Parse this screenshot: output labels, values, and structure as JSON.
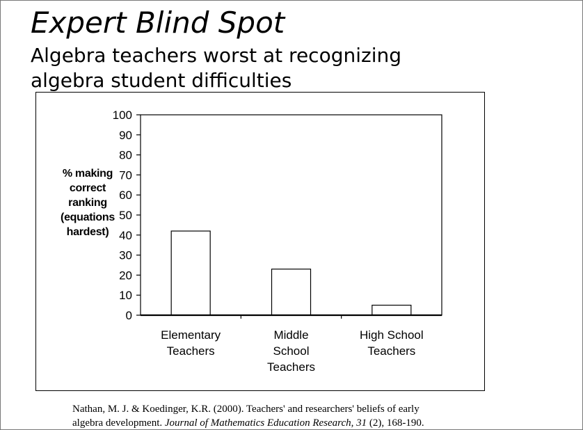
{
  "slide": {
    "title": "Expert Blind Spot",
    "subtitle_lines": [
      "Algebra teachers worst at recognizing",
      "algebra student difficulties"
    ]
  },
  "citation": {
    "line1": "Nathan, M. J. & Koedinger, K.R.  (2000). Teachers' and researchers' beliefs of early",
    "line2_prefix": "algebra development. ",
    "journal": "Journal of Mathematics Education Research",
    "sep": ", ",
    "volume": "31",
    "line2_suffix": " (2), 168-190."
  },
  "chart_data": {
    "type": "bar",
    "title": "",
    "ylabel_lines": [
      "% making",
      "correct",
      "ranking",
      "(equations",
      "hardest)"
    ],
    "categories": [
      [
        "Elementary",
        "Teachers"
      ],
      [
        "Middle",
        "School",
        "Teachers"
      ],
      [
        "High School",
        "Teachers"
      ]
    ],
    "values": [
      42,
      23,
      5
    ],
    "ylim": [
      0,
      100
    ],
    "yticks": [
      0,
      10,
      20,
      30,
      40,
      50,
      60,
      70,
      80,
      90,
      100
    ],
    "grid": false,
    "legend": "none",
    "bar_fill": "#ffffff",
    "bar_stroke": "#000000"
  }
}
